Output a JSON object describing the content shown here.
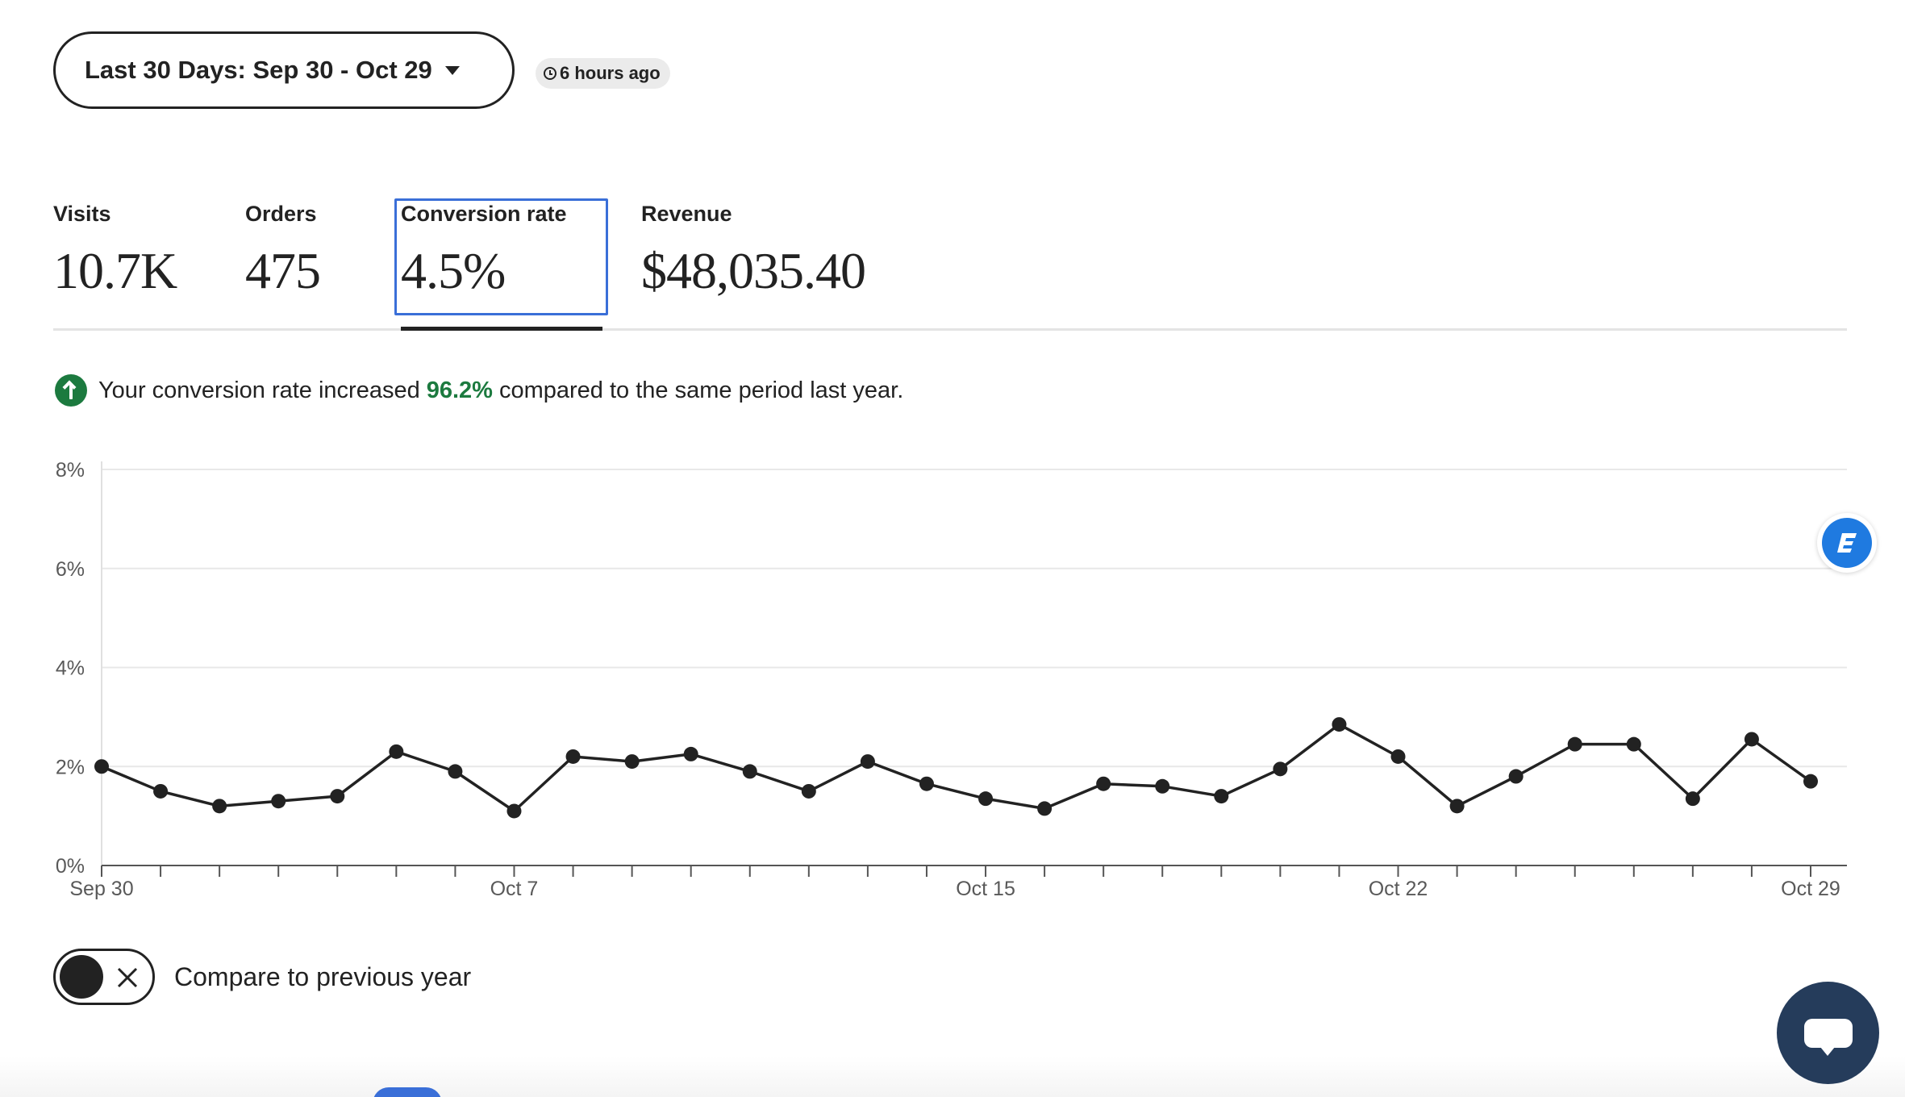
{
  "header": {
    "date_range_label": "Last 30 Days: Sep 30 - Oct 29",
    "updated_label": "6 hours ago"
  },
  "stats": {
    "visits": {
      "label": "Visits",
      "value": "10.7K"
    },
    "orders": {
      "label": "Orders",
      "value": "475"
    },
    "conversion_rate": {
      "label": "Conversion rate",
      "value": "4.5%"
    },
    "revenue": {
      "label": "Revenue",
      "value": "$48,035.40"
    }
  },
  "insight": {
    "prefix": "Your conversion rate increased",
    "percent": "96.2%",
    "suffix": "compared to the same period last year."
  },
  "chart_data": {
    "type": "line",
    "title": "",
    "xlabel": "",
    "ylabel": "",
    "ylim": [
      0,
      8
    ],
    "y_ticks": [
      "0%",
      "2%",
      "4%",
      "6%",
      "8%"
    ],
    "grid": true,
    "x_tick_labels": [
      "Sep 30",
      "Oct 7",
      "Oct 15",
      "Oct 22",
      "Oct 29"
    ],
    "x_tick_label_indices": [
      0,
      7,
      15,
      22,
      29
    ],
    "x": [
      "Sep 30",
      "Oct 1",
      "Oct 2",
      "Oct 3",
      "Oct 4",
      "Oct 5",
      "Oct 6",
      "Oct 7",
      "Oct 8",
      "Oct 9",
      "Oct 10",
      "Oct 11",
      "Oct 12",
      "Oct 13",
      "Oct 14",
      "Oct 15",
      "Oct 16",
      "Oct 17",
      "Oct 18",
      "Oct 19",
      "Oct 20",
      "Oct 21",
      "Oct 22",
      "Oct 23",
      "Oct 24",
      "Oct 25",
      "Oct 26",
      "Oct 27",
      "Oct 28",
      "Oct 29"
    ],
    "series": [
      {
        "values": [
          2.0,
          1.5,
          1.2,
          1.3,
          1.4,
          2.3,
          1.9,
          1.1,
          2.2,
          2.1,
          2.25,
          1.9,
          1.5,
          2.1,
          1.65,
          1.35,
          1.15,
          1.65,
          1.6,
          1.4,
          1.95,
          2.85,
          2.2,
          1.2,
          1.8,
          2.45,
          2.45,
          1.35,
          2.55,
          1.7
        ]
      }
    ],
    "line_color": "#222222"
  },
  "compare": {
    "label": "Compare to previous year",
    "enabled": false
  },
  "colors": {
    "accent_green": "#1c7a3f",
    "focus_blue": "#3a6fd8",
    "chat_button": "#253c5b"
  },
  "icons": {
    "date_range": "chevron-down-icon",
    "updated": "clock-icon",
    "insight": "arrow-up-circle-icon",
    "widget": "extension-icon",
    "toggle_off": "close-icon",
    "chat": "chat-bubble-icon"
  }
}
